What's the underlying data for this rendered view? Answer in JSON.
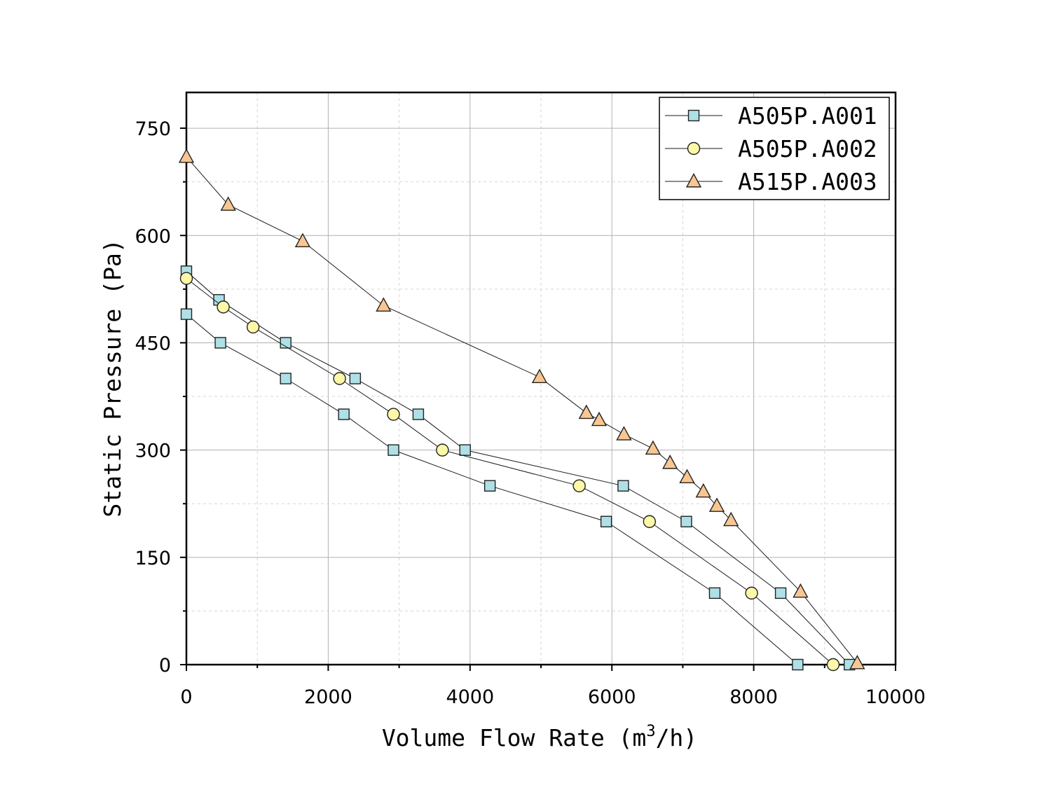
{
  "chart_data": {
    "type": "line",
    "title": "",
    "xlabel": "Volume Flow Rate (m",
    "xlabel_sup": "3",
    "xlabel_suffix": "/h)",
    "ylabel": "Static Pressure (Pa)",
    "xlim": [
      0,
      10000
    ],
    "ylim": [
      0,
      800
    ],
    "x_ticks": [
      0,
      2000,
      4000,
      6000,
      8000,
      10000
    ],
    "y_ticks": [
      0,
      150,
      300,
      450,
      600,
      750
    ],
    "grid": true,
    "legend_position": "top-right",
    "series": [
      {
        "name": "A505P.A001",
        "marker": "square",
        "color": "#aee0e6",
        "curves": [
          {
            "x": [
              0,
              480,
              1400,
              2220,
              2920,
              4280,
              5920,
              7450,
              8620
            ],
            "y": [
              490,
              450,
              400,
              350,
              300,
              250,
              200,
              100,
              0
            ]
          },
          {
            "x": [
              0,
              460,
              1400,
              2380,
              3270,
              3930,
              6160,
              7050,
              8380,
              9350
            ],
            "y": [
              550,
              510,
              450,
              400,
              350,
              300,
              250,
              200,
              100,
              0
            ]
          }
        ]
      },
      {
        "name": "A505P.A002",
        "marker": "circle",
        "color": "#fdf7a8",
        "curves": [
          {
            "x": [
              0,
              520,
              940,
              2160,
              2920,
              3610,
              5540,
              6530,
              7970,
              9120
            ],
            "y": [
              540,
              500,
              472,
              400,
              350,
              300,
              250,
              200,
              100,
              0
            ]
          }
        ]
      },
      {
        "name": "A515P.A003",
        "marker": "triangle",
        "color": "#f9c692",
        "curves": [
          {
            "x": [
              0,
              590,
              1640,
              2780,
              4980,
              5640,
              5820,
              6170,
              6580,
              6820,
              7060,
              7290,
              7480,
              7680,
              8660,
              9460
            ],
            "y": [
              710,
              643,
              592,
              502,
              402,
              352,
              342,
              322,
              302,
              282,
              262,
              242,
              222,
              202,
              102,
              2
            ]
          }
        ]
      }
    ]
  }
}
